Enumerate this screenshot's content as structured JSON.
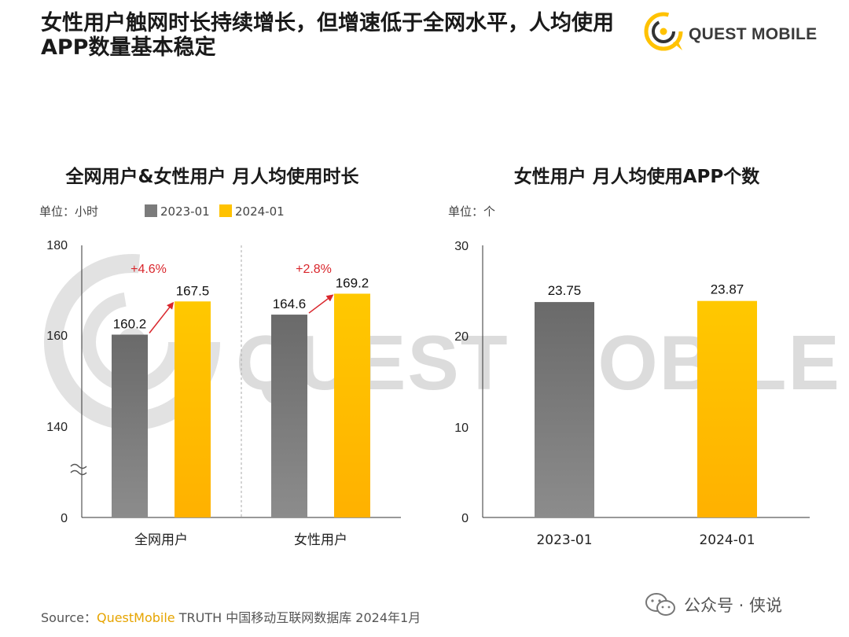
{
  "title": "女性用户触网时长持续增长，但增速低于全网水平，人均使用APP数量基本稳定",
  "brand": {
    "name": "QUEST MOBILE",
    "watermark": "QUEST MOBILE"
  },
  "colors": {
    "gray": "#7b7b7b",
    "yellow": "#ffc200",
    "red": "#d9262c"
  },
  "chart_data": [
    {
      "type": "bar",
      "title": "全网用户&女性用户 月人均使用时长",
      "unit": "单位：小时",
      "categories": [
        "全网用户",
        "女性用户"
      ],
      "series": [
        {
          "name": "2023-01",
          "values": [
            160.2,
            164.6
          ],
          "value_labels": [
            "160.2",
            "164.6"
          ]
        },
        {
          "name": "2024-01",
          "values": [
            167.5,
            169.2
          ],
          "value_labels": [
            "167.5",
            "169.2"
          ]
        }
      ],
      "growth_labels": [
        "+4.6%",
        "+2.8%"
      ],
      "yticks": [
        "180",
        "160",
        "140",
        "0"
      ],
      "axis_break": true,
      "ylim_broken": [
        0,
        180
      ],
      "ylim_visible": [
        120,
        180
      ]
    },
    {
      "type": "bar",
      "title": "女性用户 月人均使用APP个数",
      "unit": "单位：个",
      "categories": [
        "2023-01",
        "2024-01"
      ],
      "values": [
        23.75,
        23.87
      ],
      "value_labels": [
        "23.75",
        "23.87"
      ],
      "yticks": [
        "30",
        "20",
        "10",
        "0"
      ],
      "ylim": [
        0,
        30
      ]
    }
  ],
  "source": {
    "prefix": "Source：",
    "brand": "QuestMobile",
    "rest": " TRUTH 中国移动互联网数据库 2024年1月"
  },
  "footer": {
    "wechat_label": "公众号 · 侠说"
  }
}
